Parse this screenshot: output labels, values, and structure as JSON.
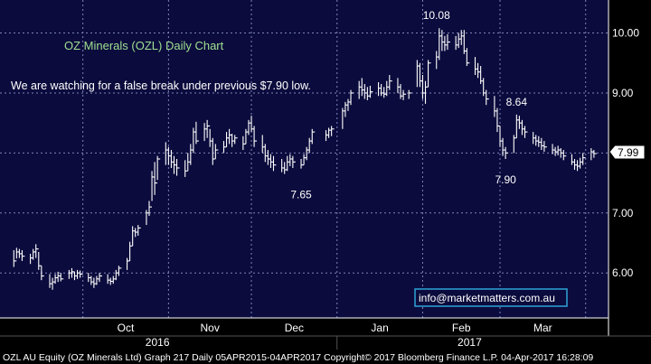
{
  "chart_data": {
    "type": "ohlc",
    "title": "OZ Minerals (OZL)  Daily Chart",
    "note": "We are watching for a false break under previous $7.90 low.",
    "y_ticks": [
      "6.00",
      "7.00",
      "8.00",
      "9.00",
      "10.00"
    ],
    "ylim": [
      5.25,
      10.55
    ],
    "months": [
      "Oct",
      "Nov",
      "Dec",
      "Jan",
      "Feb",
      "Mar"
    ],
    "years": [
      "2016",
      "2017"
    ],
    "last_price": "7.99",
    "annotations": [
      {
        "label": "10.08",
        "date": "2017-02-06",
        "value": 10.08
      },
      {
        "label": "8.64",
        "date": "2017-03-07",
        "value": 8.64
      },
      {
        "label": "7.65",
        "date": "2016-12-19",
        "value": 7.65
      },
      {
        "label": "7.90",
        "date": "2017-03-03",
        "value": 7.9
      }
    ],
    "email": "info@marketmatters.com.au",
    "footer": "OZL AU Equity (OZ Minerals Ltd) Graph 217  Daily 05APR2015-04APR2017 Copyright© 2017 Bloomberg Finance L.P.  04-Apr-2017 16:28:09",
    "grid": true,
    "series": [
      {
        "date": "2016-09-06",
        "high": 6.38,
        "low": 6.1,
        "close": 6.2
      },
      {
        "date": "2016-09-07",
        "high": 6.42,
        "low": 6.24,
        "close": 6.35
      },
      {
        "date": "2016-09-08",
        "high": 6.4,
        "low": 6.25,
        "close": 6.32
      },
      {
        "date": "2016-09-09",
        "high": 6.38,
        "low": 6.2,
        "close": 6.28
      },
      {
        "date": "2016-09-12",
        "high": 6.32,
        "low": 6.15,
        "close": 6.25
      },
      {
        "date": "2016-09-13",
        "high": 6.4,
        "low": 6.22,
        "close": 6.35
      },
      {
        "date": "2016-09-14",
        "high": 6.48,
        "low": 6.25,
        "close": 6.4
      },
      {
        "date": "2016-09-15",
        "high": 6.35,
        "low": 6.05,
        "close": 6.12
      },
      {
        "date": "2016-09-16",
        "high": 6.12,
        "low": 5.88,
        "close": 5.95
      },
      {
        "date": "2016-09-19",
        "high": 5.98,
        "low": 5.75,
        "close": 5.82
      },
      {
        "date": "2016-09-20",
        "high": 5.92,
        "low": 5.72,
        "close": 5.85
      },
      {
        "date": "2016-09-21",
        "high": 5.98,
        "low": 5.82,
        "close": 5.92
      },
      {
        "date": "2016-09-22",
        "high": 6.02,
        "low": 5.85,
        "close": 5.95
      },
      {
        "date": "2016-09-23",
        "high": 6.0,
        "low": 5.86,
        "close": 5.9
      },
      {
        "date": "2016-09-26",
        "high": 6.05,
        "low": 5.9,
        "close": 6.0
      },
      {
        "date": "2016-09-27",
        "high": 6.08,
        "low": 5.92,
        "close": 6.02
      },
      {
        "date": "2016-09-28",
        "high": 6.02,
        "low": 5.88,
        "close": 5.95
      },
      {
        "date": "2016-09-29",
        "high": 6.05,
        "low": 5.9,
        "close": 6.0
      },
      {
        "date": "2016-09-30",
        "high": 6.04,
        "low": 5.92,
        "close": 5.98
      },
      {
        "date": "2016-10-03",
        "high": 6.0,
        "low": 5.85,
        "close": 5.92
      },
      {
        "date": "2016-10-04",
        "high": 5.95,
        "low": 5.8,
        "close": 5.85
      },
      {
        "date": "2016-10-05",
        "high": 5.92,
        "low": 5.75,
        "close": 5.82
      },
      {
        "date": "2016-10-06",
        "high": 5.95,
        "low": 5.8,
        "close": 5.9
      },
      {
        "date": "2016-10-07",
        "high": 6.0,
        "low": 5.85,
        "close": 5.95
      },
      {
        "date": "2016-10-10",
        "high": 5.98,
        "low": 5.82,
        "close": 5.88
      },
      {
        "date": "2016-10-11",
        "high": 5.92,
        "low": 5.8,
        "close": 5.86
      },
      {
        "date": "2016-10-12",
        "high": 5.95,
        "low": 5.82,
        "close": 5.9
      },
      {
        "date": "2016-10-13",
        "high": 6.05,
        "low": 5.88,
        "close": 6.0
      },
      {
        "date": "2016-10-14",
        "high": 6.12,
        "low": 5.95,
        "close": 6.08
      },
      {
        "date": "2016-10-17",
        "high": 6.25,
        "low": 6.05,
        "close": 6.2
      },
      {
        "date": "2016-10-18",
        "high": 6.52,
        "low": 6.2,
        "close": 6.45
      },
      {
        "date": "2016-10-19",
        "high": 6.78,
        "low": 6.45,
        "close": 6.7
      },
      {
        "date": "2016-10-20",
        "high": 6.75,
        "low": 6.6,
        "close": 6.68
      },
      {
        "date": "2016-10-21",
        "high": 6.8,
        "low": 6.62,
        "close": 6.75
      },
      {
        "date": "2016-10-24",
        "high": 7.05,
        "low": 6.8,
        "close": 7.0
      },
      {
        "date": "2016-10-25",
        "high": 7.2,
        "low": 6.95,
        "close": 7.1
      },
      {
        "date": "2016-10-26",
        "high": 7.7,
        "low": 7.2,
        "close": 7.6
      },
      {
        "date": "2016-10-27",
        "high": 7.85,
        "low": 7.3,
        "close": 7.5
      },
      {
        "date": "2016-10-28",
        "high": 7.95,
        "low": 7.55,
        "close": 7.9
      },
      {
        "date": "2016-10-31",
        "high": 8.18,
        "low": 7.8,
        "close": 8.05
      },
      {
        "date": "2016-11-01",
        "high": 8.1,
        "low": 7.8,
        "close": 7.95
      },
      {
        "date": "2016-11-02",
        "high": 8.05,
        "low": 7.75,
        "close": 7.85
      },
      {
        "date": "2016-11-03",
        "high": 7.95,
        "low": 7.65,
        "close": 7.8
      },
      {
        "date": "2016-11-04",
        "high": 7.9,
        "low": 7.62,
        "close": 7.75
      },
      {
        "date": "2016-11-07",
        "high": 7.88,
        "low": 7.6,
        "close": 7.7
      },
      {
        "date": "2016-11-08",
        "high": 8.0,
        "low": 7.7,
        "close": 7.85
      },
      {
        "date": "2016-11-09",
        "high": 8.15,
        "low": 7.8,
        "close": 8.05
      },
      {
        "date": "2016-11-10",
        "high": 8.42,
        "low": 8.0,
        "close": 8.35
      },
      {
        "date": "2016-11-11",
        "high": 8.52,
        "low": 8.15,
        "close": 8.2
      },
      {
        "date": "2016-11-14",
        "high": 8.5,
        "low": 8.2,
        "close": 8.4
      },
      {
        "date": "2016-11-15",
        "high": 8.55,
        "low": 8.25,
        "close": 8.45
      },
      {
        "date": "2016-11-16",
        "high": 8.4,
        "low": 8.1,
        "close": 8.2
      },
      {
        "date": "2016-11-17",
        "high": 8.25,
        "low": 7.8,
        "close": 7.9
      },
      {
        "date": "2016-11-18",
        "high": 8.15,
        "low": 7.9,
        "close": 8.05
      },
      {
        "date": "2016-11-21",
        "high": 8.2,
        "low": 8.0,
        "close": 8.1
      },
      {
        "date": "2016-11-22",
        "high": 8.35,
        "low": 8.1,
        "close": 8.25
      },
      {
        "date": "2016-11-23",
        "high": 8.4,
        "low": 8.15,
        "close": 8.3
      },
      {
        "date": "2016-11-24",
        "high": 8.32,
        "low": 8.1,
        "close": 8.2
      },
      {
        "date": "2016-11-25",
        "high": 8.3,
        "low": 8.15,
        "close": 8.25
      },
      {
        "date": "2016-11-28",
        "high": 8.28,
        "low": 8.05,
        "close": 8.15
      },
      {
        "date": "2016-11-29",
        "high": 8.4,
        "low": 8.15,
        "close": 8.35
      },
      {
        "date": "2016-11-30",
        "high": 8.55,
        "low": 8.3,
        "close": 8.5
      },
      {
        "date": "2016-12-01",
        "high": 8.62,
        "low": 8.35,
        "close": 8.4
      },
      {
        "date": "2016-12-02",
        "high": 8.45,
        "low": 8.1,
        "close": 8.2
      },
      {
        "date": "2016-12-05",
        "high": 8.3,
        "low": 8.0,
        "close": 8.1
      },
      {
        "date": "2016-12-06",
        "high": 8.15,
        "low": 7.85,
        "close": 7.95
      },
      {
        "date": "2016-12-07",
        "high": 8.05,
        "low": 7.8,
        "close": 7.9
      },
      {
        "date": "2016-12-08",
        "high": 7.98,
        "low": 7.75,
        "close": 7.85
      },
      {
        "date": "2016-12-09",
        "high": 7.95,
        "low": 7.7,
        "close": 7.8
      },
      {
        "date": "2016-12-12",
        "high": 7.9,
        "low": 7.68,
        "close": 7.75
      },
      {
        "date": "2016-12-13",
        "high": 7.85,
        "low": 7.65,
        "close": 7.72
      },
      {
        "date": "2016-12-14",
        "high": 7.95,
        "low": 7.7,
        "close": 7.85
      },
      {
        "date": "2016-12-15",
        "high": 7.98,
        "low": 7.78,
        "close": 7.9
      },
      {
        "date": "2016-12-16",
        "high": 7.95,
        "low": 7.75,
        "close": 7.85
      },
      {
        "date": "2016-12-19",
        "high": 7.9,
        "low": 7.74,
        "close": 7.8
      },
      {
        "date": "2016-12-20",
        "high": 7.98,
        "low": 7.8,
        "close": 7.92
      },
      {
        "date": "2016-12-21",
        "high": 8.1,
        "low": 7.88,
        "close": 8.05
      },
      {
        "date": "2016-12-22",
        "high": 8.25,
        "low": 8.0,
        "close": 8.2
      },
      {
        "date": "2016-12-23",
        "high": 8.4,
        "low": 8.15,
        "close": 8.35
      },
      {
        "date": "2016-12-28",
        "high": 8.38,
        "low": 8.2,
        "close": 8.3
      },
      {
        "date": "2016-12-29",
        "high": 8.42,
        "low": 8.25,
        "close": 8.38
      },
      {
        "date": "2016-12-30",
        "high": 8.45,
        "low": 8.28,
        "close": 8.4
      },
      {
        "date": "2017-01-03",
        "high": 8.75,
        "low": 8.4,
        "close": 8.7
      },
      {
        "date": "2017-01-04",
        "high": 8.85,
        "low": 8.6,
        "close": 8.8
      },
      {
        "date": "2017-01-05",
        "high": 8.9,
        "low": 8.7,
        "close": 8.85
      },
      {
        "date": "2017-01-06",
        "high": 9.05,
        "low": 8.8,
        "close": 9.0
      },
      {
        "date": "2017-01-09",
        "high": 9.2,
        "low": 8.9,
        "close": 9.1
      },
      {
        "date": "2017-01-10",
        "high": 9.25,
        "low": 8.95,
        "close": 9.05
      },
      {
        "date": "2017-01-11",
        "high": 9.15,
        "low": 8.9,
        "close": 9.0
      },
      {
        "date": "2017-01-12",
        "high": 9.1,
        "low": 8.88,
        "close": 8.95
      },
      {
        "date": "2017-01-13",
        "high": 9.12,
        "low": 8.92,
        "close": 9.02
      },
      {
        "date": "2017-01-16",
        "high": 9.18,
        "low": 8.95,
        "close": 9.08
      },
      {
        "date": "2017-01-17",
        "high": 9.15,
        "low": 8.95,
        "close": 9.0
      },
      {
        "date": "2017-01-18",
        "high": 9.1,
        "low": 8.92,
        "close": 8.98
      },
      {
        "date": "2017-01-19",
        "high": 9.2,
        "low": 8.95,
        "close": 9.1
      },
      {
        "date": "2017-01-20",
        "high": 9.3,
        "low": 9.05,
        "close": 9.2
      },
      {
        "date": "2017-01-23",
        "high": 9.25,
        "low": 9.0,
        "close": 9.1
      },
      {
        "date": "2017-01-24",
        "high": 9.15,
        "low": 8.9,
        "close": 8.95
      },
      {
        "date": "2017-01-25",
        "high": 9.05,
        "low": 8.88,
        "close": 8.98
      },
      {
        "date": "2017-01-27",
        "high": 9.05,
        "low": 8.9,
        "close": 9.0
      },
      {
        "date": "2017-01-30",
        "high": 9.55,
        "low": 9.1,
        "close": 9.45
      },
      {
        "date": "2017-01-31",
        "high": 9.5,
        "low": 9.1,
        "close": 9.2
      },
      {
        "date": "2017-02-01",
        "high": 9.3,
        "low": 8.9,
        "close": 9.0
      },
      {
        "date": "2017-02-02",
        "high": 9.2,
        "low": 8.82,
        "close": 9.1
      },
      {
        "date": "2017-02-03",
        "high": 9.55,
        "low": 9.1,
        "close": 9.5
      },
      {
        "date": "2017-02-06",
        "high": 9.7,
        "low": 9.4,
        "close": 9.6
      },
      {
        "date": "2017-02-07",
        "high": 10.08,
        "low": 9.55,
        "close": 9.95
      },
      {
        "date": "2017-02-08",
        "high": 10.05,
        "low": 9.7,
        "close": 9.85
      },
      {
        "date": "2017-02-09",
        "high": 9.95,
        "low": 9.7,
        "close": 9.8
      },
      {
        "date": "2017-02-10",
        "high": 9.98,
        "low": 9.72,
        "close": 9.85
      },
      {
        "date": "2017-02-13",
        "high": 9.95,
        "low": 9.72,
        "close": 9.8
      },
      {
        "date": "2017-02-14",
        "high": 10.0,
        "low": 9.75,
        "close": 9.9
      },
      {
        "date": "2017-02-15",
        "high": 10.05,
        "low": 9.8,
        "close": 9.95
      },
      {
        "date": "2017-02-16",
        "high": 10.05,
        "low": 9.65,
        "close": 9.7
      },
      {
        "date": "2017-02-17",
        "high": 9.75,
        "low": 9.45,
        "close": 9.5
      },
      {
        "date": "2017-02-20",
        "high": 9.6,
        "low": 9.3,
        "close": 9.4
      },
      {
        "date": "2017-02-21",
        "high": 9.5,
        "low": 9.25,
        "close": 9.35
      },
      {
        "date": "2017-02-22",
        "high": 9.45,
        "low": 9.15,
        "close": 9.2
      },
      {
        "date": "2017-02-23",
        "high": 9.25,
        "low": 8.95,
        "close": 9.0
      },
      {
        "date": "2017-02-24",
        "high": 9.05,
        "low": 8.8,
        "close": 8.9
      },
      {
        "date": "2017-02-27",
        "high": 8.95,
        "low": 8.6,
        "close": 8.7
      },
      {
        "date": "2017-02-28",
        "high": 8.75,
        "low": 8.35,
        "close": 8.45
      },
      {
        "date": "2017-03-01",
        "high": 8.45,
        "low": 8.1,
        "close": 8.2
      },
      {
        "date": "2017-03-02",
        "high": 8.25,
        "low": 7.95,
        "close": 8.05
      },
      {
        "date": "2017-03-03",
        "high": 8.1,
        "low": 7.9,
        "close": 8.0
      },
      {
        "date": "2017-03-06",
        "high": 8.3,
        "low": 8.0,
        "close": 8.25
      },
      {
        "date": "2017-03-07",
        "high": 8.64,
        "low": 8.25,
        "close": 8.55
      },
      {
        "date": "2017-03-08",
        "high": 8.62,
        "low": 8.4,
        "close": 8.5
      },
      {
        "date": "2017-03-09",
        "high": 8.55,
        "low": 8.3,
        "close": 8.4
      },
      {
        "date": "2017-03-10",
        "high": 8.45,
        "low": 8.25,
        "close": 8.35
      },
      {
        "date": "2017-03-13",
        "high": 8.35,
        "low": 8.15,
        "close": 8.25
      },
      {
        "date": "2017-03-14",
        "high": 8.3,
        "low": 8.12,
        "close": 8.2
      },
      {
        "date": "2017-03-15",
        "high": 8.28,
        "low": 8.1,
        "close": 8.18
      },
      {
        "date": "2017-03-16",
        "high": 8.25,
        "low": 8.05,
        "close": 8.12
      },
      {
        "date": "2017-03-17",
        "high": 8.2,
        "low": 8.02,
        "close": 8.1
      },
      {
        "date": "2017-03-20",
        "high": 8.15,
        "low": 7.98,
        "close": 8.05
      },
      {
        "date": "2017-03-21",
        "high": 8.1,
        "low": 7.95,
        "close": 8.02
      },
      {
        "date": "2017-03-22",
        "high": 8.12,
        "low": 7.96,
        "close": 8.05
      },
      {
        "date": "2017-03-23",
        "high": 8.08,
        "low": 7.92,
        "close": 8.0
      },
      {
        "date": "2017-03-24",
        "high": 8.05,
        "low": 7.88,
        "close": 7.95
      },
      {
        "date": "2017-03-27",
        "high": 7.98,
        "low": 7.8,
        "close": 7.85
      },
      {
        "date": "2017-03-28",
        "high": 7.9,
        "low": 7.72,
        "close": 7.8
      },
      {
        "date": "2017-03-29",
        "high": 7.88,
        "low": 7.7,
        "close": 7.78
      },
      {
        "date": "2017-03-30",
        "high": 7.92,
        "low": 7.74,
        "close": 7.85
      },
      {
        "date": "2017-03-31",
        "high": 8.0,
        "low": 7.8,
        "close": 7.92
      },
      {
        "date": "2017-04-03",
        "high": 8.08,
        "low": 7.88,
        "close": 8.02
      },
      {
        "date": "2017-04-04",
        "high": 8.05,
        "low": 7.92,
        "close": 7.99
      }
    ]
  }
}
